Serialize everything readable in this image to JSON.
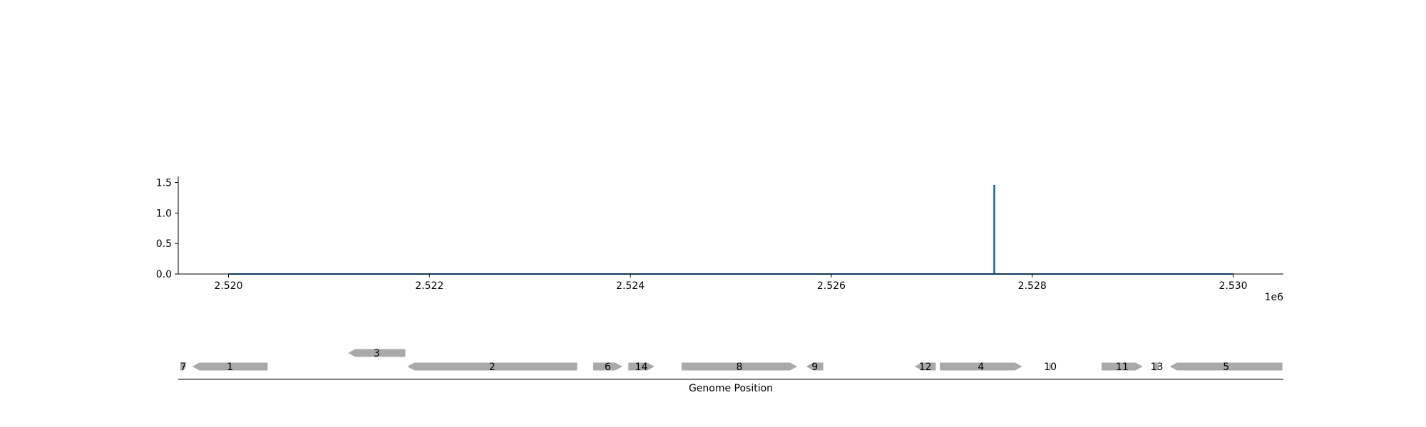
{
  "chart_data": {
    "type": "line",
    "title": "",
    "ylabel": "",
    "xlabel": "",
    "x_offset_label": "1e6",
    "xlim": [
      2519500,
      2530500
    ],
    "ylim": [
      0,
      1.6
    ],
    "x_ticks": [
      2520000,
      2522000,
      2524000,
      2526000,
      2528000,
      2530000
    ],
    "x_tick_labels": [
      "2.520",
      "2.522",
      "2.524",
      "2.526",
      "2.528",
      "2.530"
    ],
    "y_ticks": [
      0.0,
      0.5,
      1.0,
      1.5
    ],
    "y_tick_labels": [
      "0.0",
      "0.5",
      "1.0",
      "1.5"
    ],
    "line_color": "#1f6fb4",
    "series": [
      {
        "x": [
          2520000,
          2527620,
          2527620,
          2527625,
          2527625,
          2530000
        ],
        "y": [
          0,
          0,
          1.45,
          1.45,
          0,
          0
        ]
      }
    ]
  },
  "gene_track": {
    "xlabel": "Genome Position",
    "gene_color": "#a9a9a9",
    "genes": [
      {
        "label": "7",
        "start": 2519520,
        "end": 2519580,
        "strand": 1,
        "row": 0
      },
      {
        "label": "1",
        "start": 2519640,
        "end": 2520390,
        "strand": -1,
        "row": 0
      },
      {
        "label": "3",
        "start": 2521190,
        "end": 2521760,
        "strand": -1,
        "row": 1
      },
      {
        "label": "2",
        "start": 2521780,
        "end": 2523470,
        "strand": -1,
        "row": 0
      },
      {
        "label": "6",
        "start": 2523630,
        "end": 2523920,
        "strand": 1,
        "row": 0
      },
      {
        "label": "14",
        "start": 2523980,
        "end": 2524240,
        "strand": 1,
        "row": 0
      },
      {
        "label": "8",
        "start": 2524510,
        "end": 2525660,
        "strand": 1,
        "row": 0
      },
      {
        "label": "9",
        "start": 2525750,
        "end": 2525920,
        "strand": -1,
        "row": 0
      },
      {
        "label": "12",
        "start": 2526830,
        "end": 2527040,
        "strand": -1,
        "row": 0
      },
      {
        "label": "4",
        "start": 2527080,
        "end": 2527900,
        "strand": 1,
        "row": 0
      },
      {
        "label": "10",
        "start": 2528170,
        "end": 2528190,
        "strand": 1,
        "row": 0
      },
      {
        "label": "11",
        "start": 2528690,
        "end": 2529100,
        "strand": 1,
        "row": 0
      },
      {
        "label": "13",
        "start": 2529210,
        "end": 2529270,
        "strand": 1,
        "row": 0
      },
      {
        "label": "5",
        "start": 2529370,
        "end": 2530490,
        "strand": -1,
        "row": 0
      }
    ]
  }
}
